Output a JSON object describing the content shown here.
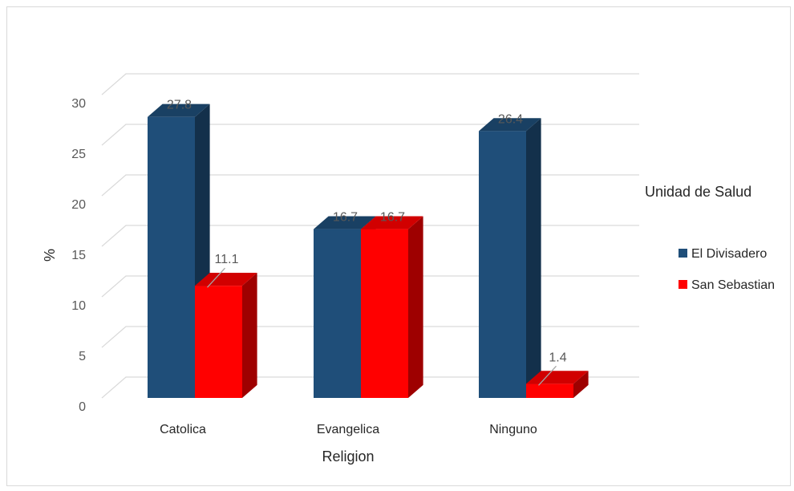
{
  "chart_data": {
    "type": "bar",
    "categories": [
      "Catolica",
      "Evangelica",
      "Ninguno"
    ],
    "series": [
      {
        "name": "El Divisadero",
        "values": [
          27.8,
          16.7,
          26.4
        ],
        "color": "#1f4e79"
      },
      {
        "name": "San Sebastian",
        "values": [
          11.1,
          16.7,
          1.4
        ],
        "color": "#ff0000"
      }
    ],
    "xlabel": "Religion",
    "ylabel": "%",
    "ylim": [
      0,
      30
    ],
    "yticks": [
      "0",
      "5",
      "10",
      "15",
      "20",
      "25",
      "30"
    ],
    "data_labels": [
      [
        "27.8",
        "16.7",
        "26.4"
      ],
      [
        "11.1",
        "16.7",
        "1.4"
      ]
    ],
    "legend_title": "Unidad de Salud",
    "legend_position": "right",
    "grid": true,
    "style": "3d-column"
  }
}
